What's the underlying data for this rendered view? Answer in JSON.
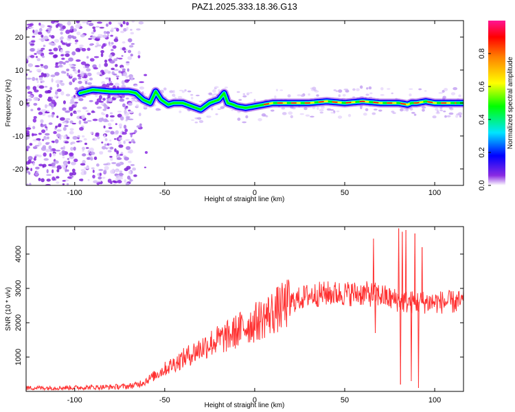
{
  "title": "PAZ1.2025.333.18.36.G13",
  "chart_data": [
    {
      "type": "heatmap",
      "name": "spectrogram",
      "xlabel": "Height of straight line (km)",
      "ylabel": "Frequency (Hz)",
      "xlim": [
        -127,
        116
      ],
      "ylim": [
        -25,
        25
      ],
      "x_ticks": [
        -100,
        -50,
        0,
        50,
        100
      ],
      "y_ticks": [
        20,
        10,
        0,
        -10,
        -20
      ],
      "x_tick_labels": [
        "-100",
        "-50",
        "0",
        "50",
        "100"
      ],
      "y_tick_labels": [
        "20",
        "10",
        "0",
        "-10",
        "-20"
      ],
      "ridge": {
        "x": [
          -97,
          -90,
          -80,
          -70,
          -66,
          -62,
          -58,
          -55,
          -52,
          -48,
          -45,
          -40,
          -35,
          -30,
          -25,
          -20,
          -17,
          -15,
          -12,
          -10,
          -5,
          0,
          10,
          20,
          30,
          40,
          50,
          60,
          70,
          80,
          85,
          87,
          90,
          95,
          100,
          105,
          110,
          116
        ],
        "freq_hz": [
          3,
          4,
          3.5,
          3.5,
          3,
          1,
          0,
          3.5,
          1,
          -0.5,
          0,
          0,
          -1,
          -2,
          0,
          1,
          3,
          0,
          -0.5,
          -1,
          -1.5,
          -1,
          0,
          0,
          0,
          0.5,
          0,
          0.5,
          0,
          0,
          -0.5,
          0,
          0,
          0.5,
          0,
          0,
          0,
          0
        ]
      },
      "noise_region_x": [
        -127,
        -68
      ],
      "colormap": [
        "#ffffff",
        "#8a2be2",
        "#0000ff",
        "#00e5ff",
        "#00ff00",
        "#ffff00",
        "#ff8000",
        "#ff0000",
        "#ff1493"
      ]
    },
    {
      "type": "line",
      "name": "snr",
      "xlabel": "Height of straight line (km)",
      "ylabel": "SNR (10 * v/v)",
      "xlim": [
        -127,
        116
      ],
      "ylim": [
        0,
        4800
      ],
      "x_ticks": [
        -100,
        -50,
        0,
        50,
        100
      ],
      "y_ticks": [
        1000,
        2000,
        3000,
        4000
      ],
      "x_tick_labels": [
        "-100",
        "-50",
        "0",
        "50",
        "100"
      ],
      "y_tick_labels": [
        "1000",
        "2000",
        "3000",
        "4000"
      ],
      "series": [
        {
          "name": "SNR",
          "color": "#ff3030",
          "envelope_x": [
            -127,
            -100,
            -80,
            -70,
            -65,
            -60,
            -55,
            -50,
            -45,
            -40,
            -35,
            -30,
            -25,
            -20,
            -15,
            -10,
            -5,
            0,
            5,
            10,
            15,
            20,
            25,
            30,
            40,
            50,
            60,
            70,
            75,
            80,
            85,
            90,
            95,
            100,
            105,
            110,
            116
          ],
          "envelope_y": [
            100,
            110,
            130,
            150,
            200,
            320,
            480,
            650,
            800,
            950,
            1100,
            1250,
            1400,
            1500,
            1600,
            1750,
            1900,
            2000,
            2150,
            2300,
            2450,
            2600,
            2700,
            2800,
            2850,
            2850,
            2850,
            2800,
            2700,
            2650,
            2600,
            2600,
            2600,
            2600,
            2600,
            2600,
            2600
          ],
          "spikes": [
            {
              "x": 66,
              "y": 4450
            },
            {
              "x": 67,
              "y": 1700
            },
            {
              "x": 80,
              "y": 4750
            },
            {
              "x": 81,
              "y": 200
            },
            {
              "x": 82,
              "y": 4650
            },
            {
              "x": 84,
              "y": 4700
            },
            {
              "x": 87,
              "y": 300
            },
            {
              "x": 89,
              "y": 4600
            },
            {
              "x": 91,
              "y": 100
            },
            {
              "x": 93,
              "y": 4200
            }
          ]
        }
      ]
    }
  ],
  "colorbar": {
    "label": "Normalized spectral amplitude",
    "range": [
      0,
      1
    ],
    "ticks": [
      0.0,
      0.2,
      0.4,
      0.6,
      0.8
    ],
    "tick_labels": [
      "0.0",
      "0.2",
      "0.4",
      "0.6",
      "0.8"
    ]
  }
}
